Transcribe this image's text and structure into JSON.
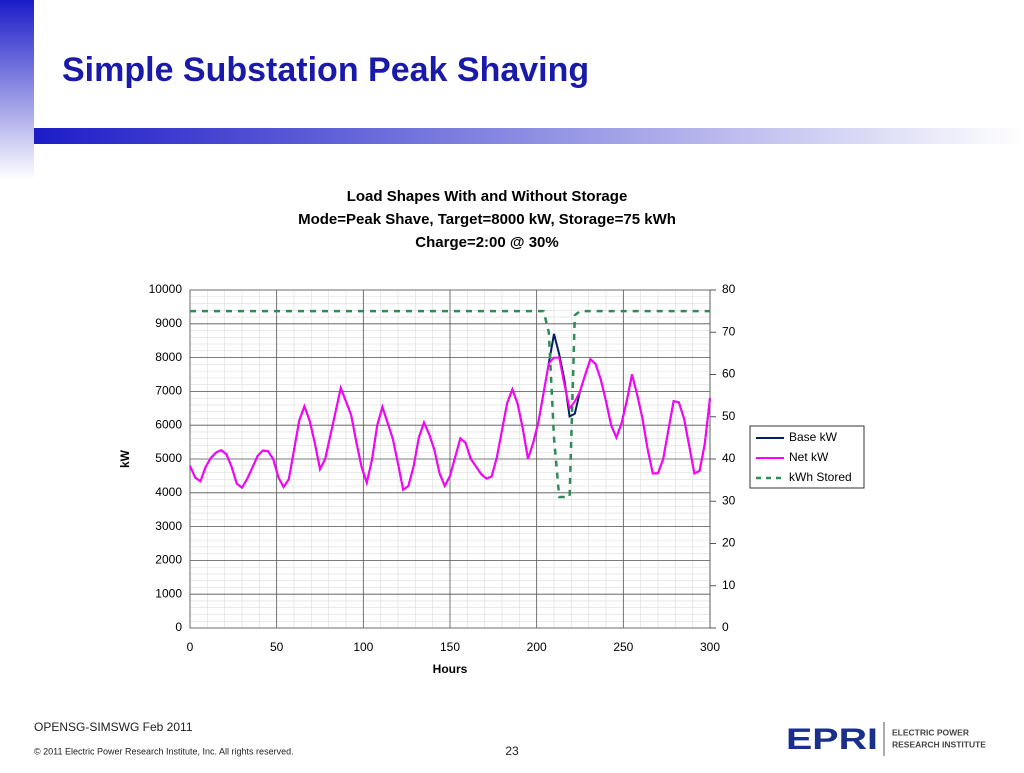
{
  "slide": {
    "title": "Simple Substation Peak Shaving",
    "footer": "OPENSG-SIMSWG Feb 2011",
    "copyright": "© 2011 Electric Power Research Institute, Inc. All rights reserved.",
    "page": "23",
    "logo": "EPRI",
    "logo_line1": "ELECTRIC POWER",
    "logo_line2": "RESEARCH INSTITUTE"
  },
  "chart_data": {
    "type": "line",
    "title": [
      "Load Shapes With and Without Storage",
      "Mode=Peak Shave, Target=8000 kW, Storage=75 kWh",
      "Charge=2:00 @ 30%"
    ],
    "x_label": "Hours",
    "y_label": "kW",
    "x": [
      0,
      3,
      6,
      9,
      12,
      15,
      18,
      21,
      24,
      27,
      30,
      33,
      36,
      39,
      42,
      45,
      48,
      51,
      54,
      57,
      60,
      63,
      66,
      69,
      72,
      75,
      78,
      81,
      84,
      87,
      90,
      93,
      96,
      99,
      102,
      105,
      108,
      111,
      114,
      117,
      120,
      123,
      126,
      129,
      132,
      135,
      138,
      141,
      144,
      147,
      150,
      153,
      156,
      159,
      162,
      165,
      168,
      171,
      174,
      177,
      180,
      183,
      186,
      189,
      192,
      195,
      198,
      201,
      204,
      207,
      210,
      213,
      216,
      219,
      222,
      225,
      228,
      231,
      234,
      237,
      240,
      243,
      246,
      249,
      252,
      255,
      258,
      261,
      264,
      267,
      270,
      273,
      276,
      279,
      282,
      285,
      288,
      291,
      294,
      297,
      300
    ],
    "series": [
      {
        "name": "Base kW",
        "color": "#001f5b",
        "dash": false,
        "values": [
          4800,
          4450,
          4340,
          4760,
          5030,
          5190,
          5260,
          5140,
          4770,
          4270,
          4150,
          4410,
          4750,
          5090,
          5250,
          5230,
          5000,
          4460,
          4170,
          4400,
          5260,
          6130,
          6560,
          6140,
          5480,
          4700,
          5000,
          5700,
          6400,
          7100,
          6700,
          6300,
          5490,
          4760,
          4300,
          4980,
          5990,
          6540,
          6070,
          5600,
          4860,
          4090,
          4200,
          4780,
          5630,
          6080,
          5730,
          5270,
          4570,
          4200,
          4500,
          5060,
          5610,
          5480,
          5000,
          4780,
          4550,
          4420,
          4480,
          5040,
          5850,
          6660,
          7060,
          6640,
          5900,
          5000,
          5480,
          6090,
          6960,
          7830,
          8700,
          8100,
          7340,
          6260,
          6340,
          7000,
          7490,
          7950,
          7810,
          7350,
          6710,
          5990,
          5640,
          6060,
          6720,
          7500,
          6900,
          6210,
          5300,
          4570,
          4580,
          5000,
          5860,
          6710,
          6680,
          6200,
          5390,
          4570,
          4650,
          5450,
          6800
        ]
      },
      {
        "name": "Net kW",
        "color": "#ff00ff",
        "dash": false,
        "values": [
          4800,
          4450,
          4340,
          4760,
          5030,
          5190,
          5260,
          5140,
          4770,
          4270,
          4150,
          4410,
          4750,
          5090,
          5250,
          5230,
          5000,
          4460,
          4170,
          4400,
          5260,
          6130,
          6560,
          6140,
          5480,
          4700,
          5000,
          5700,
          6400,
          7100,
          6700,
          6300,
          5490,
          4760,
          4300,
          4980,
          5990,
          6540,
          6070,
          5600,
          4860,
          4090,
          4200,
          4780,
          5630,
          6080,
          5730,
          5270,
          4570,
          4200,
          4500,
          5060,
          5610,
          5480,
          5000,
          4780,
          4550,
          4420,
          4480,
          5040,
          5850,
          6660,
          7060,
          6640,
          5900,
          5000,
          5480,
          6090,
          6960,
          7830,
          8000,
          8000,
          7200,
          6500,
          6700,
          7000,
          7490,
          7950,
          7810,
          7350,
          6710,
          5990,
          5640,
          6060,
          6720,
          7500,
          6900,
          6210,
          5300,
          4570,
          4580,
          5000,
          5860,
          6710,
          6680,
          6200,
          5390,
          4570,
          4650,
          5450,
          6800
        ]
      },
      {
        "name": "kWh Stored",
        "color": "#2e8b57",
        "dash": true,
        "axis": "y2",
        "values": [
          75,
          75,
          75,
          75,
          75,
          75,
          75,
          75,
          75,
          75,
          75,
          75,
          75,
          75,
          75,
          75,
          75,
          75,
          75,
          75,
          75,
          75,
          75,
          75,
          75,
          75,
          75,
          75,
          75,
          75,
          75,
          75,
          75,
          75,
          75,
          75,
          75,
          75,
          75,
          75,
          75,
          75,
          75,
          75,
          75,
          75,
          75,
          75,
          75,
          75,
          75,
          75,
          75,
          75,
          75,
          75,
          75,
          75,
          75,
          75,
          75,
          75,
          75,
          75,
          75,
          75,
          75,
          75,
          75,
          70,
          45,
          31,
          31,
          31,
          74,
          75,
          75,
          75,
          75,
          75,
          75,
          75,
          75,
          75,
          75,
          75,
          75,
          75,
          75,
          75,
          75,
          75,
          75,
          75,
          75,
          75,
          75,
          75,
          75,
          75,
          75
        ]
      }
    ],
    "xlim": [
      0,
      300
    ],
    "xticks": [
      0,
      50,
      100,
      150,
      200,
      250,
      300
    ],
    "ylim": [
      0,
      10000
    ],
    "yticks": [
      0,
      1000,
      2000,
      3000,
      4000,
      5000,
      6000,
      7000,
      8000,
      9000,
      10000
    ],
    "y2lim": [
      0,
      80
    ],
    "y2ticks": [
      0,
      10,
      20,
      30,
      40,
      50,
      60,
      70,
      80
    ],
    "grid": true,
    "legend": "right"
  }
}
